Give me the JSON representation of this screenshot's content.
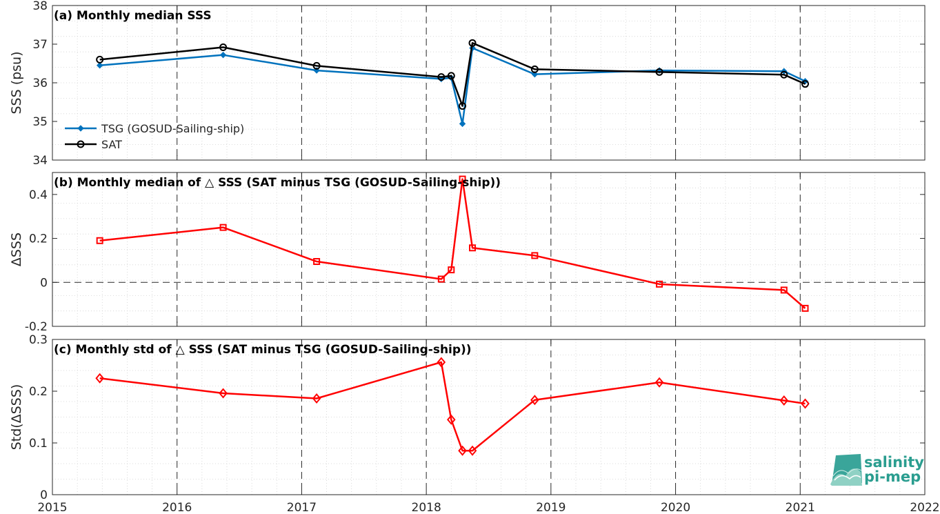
{
  "colors": {
    "tsg": "#0072BD",
    "sat": "#000000",
    "delta": "#ff0000"
  },
  "x_axis": {
    "ticks": [
      2015,
      2016,
      2017,
      2018,
      2019,
      2020,
      2021,
      2022
    ],
    "range": [
      2015,
      2022
    ]
  },
  "logo": {
    "line1": "salinity",
    "line2": "pi-mep"
  },
  "chart_data": [
    {
      "type": "line",
      "title": "(a) Monthly median SSS",
      "ylabel": "SSS (psu)",
      "ylim": [
        34,
        38
      ],
      "yticks": [
        "34",
        "35",
        "36",
        "37",
        "38"
      ],
      "ytick_values": [
        34,
        35,
        36,
        37,
        38
      ],
      "grid": true,
      "legend_placement": "lower-left",
      "x": [
        2015.38,
        2016.37,
        2017.12,
        2018.12,
        2018.2,
        2018.29,
        2018.37,
        2018.87,
        2019.87,
        2020.87,
        2021.04
      ],
      "series": [
        {
          "name": "TSG (GOSUD-Sailing-ship)",
          "marker": "dot",
          "color_key": "tsg",
          "values": [
            36.45,
            36.72,
            36.32,
            36.1,
            36.13,
            34.94,
            36.9,
            36.22,
            36.32,
            36.3,
            36.04
          ]
        },
        {
          "name": "SAT",
          "marker": "circle",
          "color_key": "sat",
          "values": [
            36.6,
            36.92,
            36.44,
            36.15,
            36.18,
            35.4,
            37.03,
            36.35,
            36.28,
            36.21,
            35.97
          ]
        }
      ]
    },
    {
      "type": "line",
      "title": "(b) Monthly median of △ SSS (SAT minus TSG (GOSUD-Sailing-ship))",
      "ylabel": "ΔSSS",
      "ylim": [
        -0.2,
        0.5
      ],
      "yticks": [
        "-0.2",
        "0",
        "0.2",
        "0.4"
      ],
      "ytick_values": [
        -0.2,
        0,
        0.2,
        0.4
      ],
      "zero_line": true,
      "grid": true,
      "x": [
        2015.38,
        2016.37,
        2017.12,
        2018.12,
        2018.2,
        2018.29,
        2018.37,
        2018.87,
        2019.87,
        2020.87,
        2021.04
      ],
      "series": [
        {
          "name": "",
          "marker": "square",
          "color_key": "delta",
          "values": [
            0.19,
            0.25,
            0.095,
            0.015,
            0.057,
            0.47,
            0.157,
            0.122,
            -0.008,
            -0.035,
            -0.118
          ]
        }
      ]
    },
    {
      "type": "line",
      "title": "(c) Monthly std of △ SSS (SAT minus TSG (GOSUD-Sailing-ship))",
      "ylabel": "Std(ΔSSS)",
      "ylim": [
        0,
        0.3
      ],
      "yticks": [
        "0",
        "0.1",
        "0.2",
        "0.3"
      ],
      "ytick_values": [
        0,
        0.1,
        0.2,
        0.3
      ],
      "grid": true,
      "x": [
        2015.38,
        2016.37,
        2017.12,
        2018.12,
        2018.2,
        2018.29,
        2018.37,
        2018.87,
        2019.87,
        2020.87,
        2021.04
      ],
      "series": [
        {
          "name": "",
          "marker": "diamond",
          "color_key": "delta",
          "values": [
            0.225,
            0.196,
            0.186,
            0.256,
            0.145,
            0.085,
            0.085,
            0.183,
            0.217,
            0.182,
            0.176
          ]
        }
      ]
    }
  ]
}
